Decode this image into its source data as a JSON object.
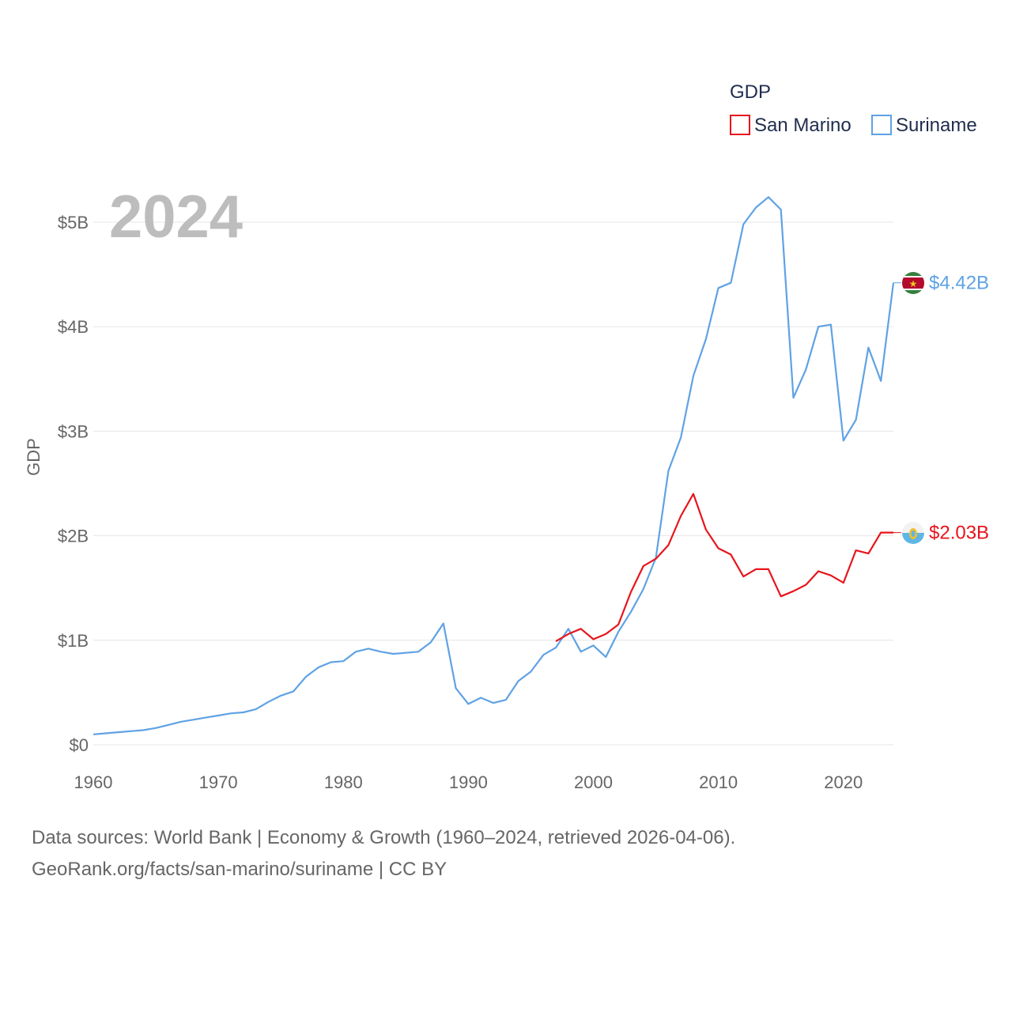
{
  "chart_data": {
    "type": "line",
    "year_label": "2024",
    "ylabel": "GDP",
    "xlim": [
      1960,
      2024
    ],
    "ylim": [
      0,
      5.25
    ],
    "x_ticks": [
      {
        "value": 1960,
        "label": "1960"
      },
      {
        "value": 1970,
        "label": "1970"
      },
      {
        "value": 1980,
        "label": "1980"
      },
      {
        "value": 1990,
        "label": "1990"
      },
      {
        "value": 2000,
        "label": "2000"
      },
      {
        "value": 2010,
        "label": "2010"
      },
      {
        "value": 2020,
        "label": "2020"
      }
    ],
    "y_ticks": [
      {
        "value": 0,
        "label": "$0"
      },
      {
        "value": 1,
        "label": "$1B"
      },
      {
        "value": 2,
        "label": "$2B"
      },
      {
        "value": 3,
        "label": "$3B"
      },
      {
        "value": 4,
        "label": "$4B"
      },
      {
        "value": 5,
        "label": "$5B"
      }
    ],
    "legend": {
      "title": "GDP",
      "position": "top-right",
      "items": [
        {
          "label": "San Marino",
          "color": "#e8141c"
        },
        {
          "label": "Suriname",
          "color": "#5fa2e4"
        }
      ]
    },
    "series": [
      {
        "name": "Suriname",
        "color": "#5fa2e4",
        "end_label": "$4.42B",
        "flag": "suriname-flag",
        "x": [
          1960,
          1961,
          1962,
          1963,
          1964,
          1965,
          1966,
          1967,
          1968,
          1969,
          1970,
          1971,
          1972,
          1973,
          1974,
          1975,
          1976,
          1977,
          1978,
          1979,
          1980,
          1981,
          1982,
          1983,
          1984,
          1985,
          1986,
          1987,
          1988,
          1989,
          1990,
          1991,
          1992,
          1993,
          1994,
          1995,
          1996,
          1997,
          1998,
          1999,
          2000,
          2001,
          2002,
          2003,
          2004,
          2005,
          2006,
          2007,
          2008,
          2009,
          2010,
          2011,
          2012,
          2013,
          2014,
          2015,
          2016,
          2017,
          2018,
          2019,
          2020,
          2021,
          2022,
          2023,
          2024
        ],
        "values": [
          0.1,
          0.11,
          0.12,
          0.13,
          0.14,
          0.16,
          0.19,
          0.22,
          0.24,
          0.26,
          0.28,
          0.3,
          0.31,
          0.34,
          0.41,
          0.47,
          0.51,
          0.65,
          0.74,
          0.79,
          0.8,
          0.89,
          0.92,
          0.89,
          0.87,
          0.88,
          0.89,
          0.98,
          1.16,
          0.54,
          0.39,
          0.45,
          0.4,
          0.43,
          0.61,
          0.7,
          0.86,
          0.93,
          1.11,
          0.89,
          0.95,
          0.84,
          1.08,
          1.27,
          1.49,
          1.79,
          2.62,
          2.94,
          3.53,
          3.88,
          4.37,
          4.42,
          4.98,
          5.14,
          5.24,
          5.12,
          3.32,
          3.59,
          4.0,
          4.02,
          2.91,
          3.11,
          3.8,
          3.48,
          4.42
        ]
      },
      {
        "name": "San Marino",
        "color": "#e8141c",
        "end_label": "$2.03B",
        "flag": "san-marino-flag",
        "x": [
          1997,
          1998,
          1999,
          2000,
          2001,
          2002,
          2003,
          2004,
          2005,
          2006,
          2007,
          2008,
          2009,
          2010,
          2011,
          2012,
          2013,
          2014,
          2015,
          2016,
          2017,
          2018,
          2019,
          2020,
          2021,
          2022,
          2023,
          2024
        ],
        "values": [
          0.99,
          1.06,
          1.11,
          1.01,
          1.06,
          1.15,
          1.46,
          1.71,
          1.78,
          1.91,
          2.19,
          2.4,
          2.06,
          1.88,
          1.82,
          1.61,
          1.68,
          1.68,
          1.42,
          1.47,
          1.53,
          1.66,
          1.62,
          1.55,
          1.86,
          1.83,
          2.03,
          2.03
        ]
      }
    ]
  },
  "footer": {
    "line1": "Data sources: World Bank | Economy & Growth (1960–2024, retrieved 2026-04-06).",
    "line2": "GeoRank.org/facts/san-marino/suriname | CC BY"
  }
}
